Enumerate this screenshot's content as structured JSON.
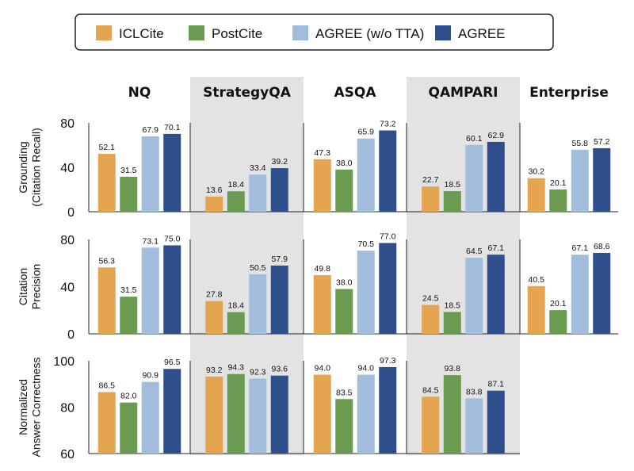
{
  "chart_data": {
    "type": "bar",
    "legend": {
      "position": "top",
      "entries": [
        {
          "name": "ICLCite",
          "color": "#E5A550"
        },
        {
          "name": "PostCite",
          "color": "#6B9B50"
        },
        {
          "name": "AGREE (w/o TTA)",
          "color": "#A2BCDC"
        },
        {
          "name": "AGREE",
          "color": "#2F4E8C"
        }
      ]
    },
    "columns": [
      "NQ",
      "StrategyQA",
      "ASQA",
      "QAMPARI",
      "Enterprise"
    ],
    "shaded_columns": [
      1,
      3
    ],
    "rows": [
      {
        "label_lines": [
          "Grounding",
          "(Citation Recall)"
        ],
        "ylim": [
          0,
          80
        ],
        "yticks": [
          "0",
          "40",
          "80"
        ],
        "values": [
          [
            52.1,
            31.5,
            67.9,
            70.1
          ],
          [
            13.6,
            18.4,
            33.4,
            39.2
          ],
          [
            47.3,
            38.0,
            65.9,
            73.2
          ],
          [
            22.7,
            18.5,
            60.1,
            62.9
          ],
          [
            30.2,
            20.1,
            55.8,
            57.2
          ]
        ],
        "labels": [
          [
            "52.1",
            "31.5",
            "67.9",
            "70.1"
          ],
          [
            "13.6",
            "18.4",
            "33.4",
            "39.2"
          ],
          [
            "47.3",
            "38.0",
            "65.9",
            "73.2"
          ],
          [
            "22.7",
            "18.5",
            "60.1",
            "62.9"
          ],
          [
            "30.2",
            "20.1",
            "55.8",
            "57.2"
          ]
        ]
      },
      {
        "label_lines": [
          "Citation",
          "Precision"
        ],
        "ylim": [
          0,
          80
        ],
        "yticks": [
          "0",
          "40",
          "80"
        ],
        "values": [
          [
            56.3,
            31.5,
            73.1,
            75.0
          ],
          [
            27.8,
            18.4,
            50.5,
            57.9
          ],
          [
            49.8,
            38.0,
            70.5,
            77.0
          ],
          [
            24.5,
            18.5,
            64.5,
            67.1
          ],
          [
            40.5,
            20.1,
            67.1,
            68.6
          ]
        ],
        "labels": [
          [
            "56.3",
            "31.5",
            "73.1",
            "75.0"
          ],
          [
            "27.8",
            "18.4",
            "50.5",
            "57.9"
          ],
          [
            "49.8",
            "38.0",
            "70.5",
            "77.0"
          ],
          [
            "24.5",
            "18.5",
            "64.5",
            "67.1"
          ],
          [
            "40.5",
            "20.1",
            "67.1",
            "68.6"
          ]
        ]
      },
      {
        "label_lines": [
          "Normalized",
          "Answer Correctness"
        ],
        "ylim": [
          60,
          100
        ],
        "yticks": [
          "60",
          "80",
          "100"
        ],
        "values": [
          [
            86.5,
            82.0,
            90.9,
            96.5
          ],
          [
            93.2,
            94.3,
            92.3,
            93.6
          ],
          [
            94.0,
            83.5,
            94.0,
            97.3
          ],
          [
            84.5,
            93.8,
            83.8,
            87.1
          ]
        ],
        "labels": [
          [
            "86.5",
            "82.0",
            "90.9",
            "96.5"
          ],
          [
            "93.2",
            "94.3",
            "92.3",
            "93.6"
          ],
          [
            "94.0",
            "83.5",
            "94.0",
            "97.3"
          ],
          [
            "84.5",
            "93.8",
            "83.8",
            "87.1"
          ]
        ]
      }
    ],
    "grid": false
  }
}
